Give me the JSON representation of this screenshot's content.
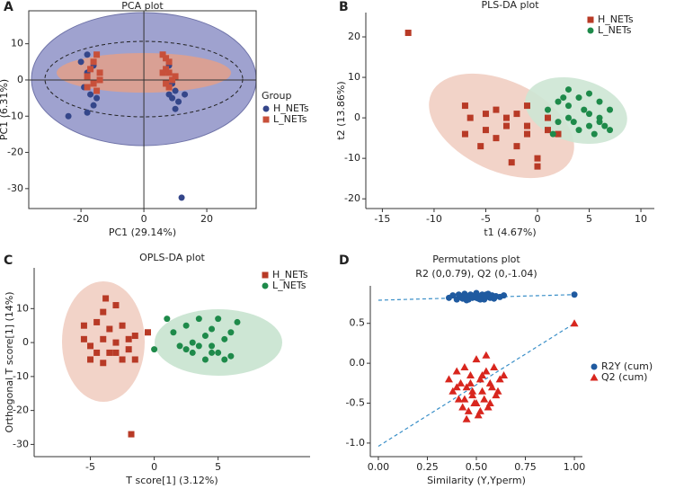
{
  "chart_data": [
    {
      "type": "scatter",
      "panel": "A",
      "title": "PCA plot",
      "x_label": "PC1 (29.14%)",
      "y_label": "PC1 (6.31%)",
      "xlim": [
        -36.6,
        35.7
      ],
      "ylim": [
        -35.5,
        19.1
      ],
      "xticks": [
        -20,
        0,
        20
      ],
      "yticks": [
        10,
        0,
        -10,
        -20,
        -30
      ],
      "frame": true,
      "zero_lines": true,
      "legend": "right",
      "legend_title": "Group",
      "series": [
        {
          "name": "H_NETs",
          "color": "#34468a",
          "marker": "circle",
          "x": [
            -20,
            -18,
            -16,
            -19,
            -17,
            -16,
            -15,
            -18,
            -24,
            8,
            9,
            10,
            9,
            11,
            10,
            13,
            12,
            -18,
            8
          ],
          "values": [
            5,
            7,
            4,
            -2,
            -4,
            -7,
            -5,
            -9,
            -10,
            4,
            -1,
            -3,
            -5,
            -6,
            -8,
            -4,
            -32.5,
            2,
            -4
          ]
        },
        {
          "name": "L_NETs",
          "color": "#c8503a",
          "marker": "square",
          "x": [
            -18,
            -17,
            -16,
            -15,
            -14,
            -16,
            -15,
            -18,
            -14,
            6,
            7,
            8,
            7,
            8,
            9,
            8,
            10,
            6,
            7
          ],
          "values": [
            1,
            3,
            5,
            7,
            2,
            -1,
            -3,
            -2,
            0,
            7,
            6,
            5,
            3,
            2,
            0,
            -2,
            1,
            2,
            -1
          ]
        }
      ]
    },
    {
      "type": "scatter",
      "panel": "B",
      "title": "PLS-DA plot",
      "x_label": "t1 (4.67%)",
      "y_label": "t2 (13.86%)",
      "xlim": [
        -16.6,
        11.3
      ],
      "ylim": [
        -22.4,
        26
      ],
      "xticks": [
        -15,
        -10,
        -5,
        0,
        5,
        10
      ],
      "yticks": [
        20,
        10,
        0,
        -10,
        -20
      ],
      "legend": "upper right",
      "series": [
        {
          "name": "H_NETs",
          "color": "#b83a26",
          "marker": "square",
          "x": [
            -12.5,
            -7,
            -6.5,
            -7,
            -5,
            -5,
            -4,
            -4,
            -3,
            -3,
            -2,
            -2,
            -1,
            -1,
            0,
            0,
            1,
            1,
            -5.5,
            -2.5,
            2,
            -1
          ],
          "values": [
            21,
            3,
            0,
            -4,
            1,
            -3,
            -5,
            2,
            0,
            -2,
            1,
            -7,
            3,
            -4,
            -10,
            -12,
            -3,
            0,
            -7,
            -11,
            -4,
            -2
          ]
        },
        {
          "name": "L_NETs",
          "color": "#1e8a4a",
          "marker": "circle",
          "x": [
            1,
            2,
            2,
            3,
            3,
            4,
            4,
            4.5,
            5,
            5,
            5,
            6,
            6,
            6,
            7,
            7,
            1.5,
            3.5,
            2.5,
            5.5,
            6.5,
            3
          ],
          "values": [
            2,
            4,
            -1,
            3,
            0,
            5,
            -3,
            2,
            6,
            1,
            -2,
            4,
            0,
            -1,
            2,
            -3,
            -4,
            -1,
            5,
            -4,
            -2,
            7
          ]
        }
      ]
    },
    {
      "type": "scatter",
      "panel": "C",
      "title": "OPLS-DA plot",
      "x_label": "T score[1] (3.12%)",
      "y_label": "Orthogonal T score[1] (14%)",
      "xlim": [
        -9.4,
        12.2
      ],
      "ylim": [
        -33.6,
        22
      ],
      "xticks": [
        -5,
        0,
        5
      ],
      "yticks": [
        10,
        0,
        -10,
        -20,
        -30
      ],
      "legend": "upper right",
      "series": [
        {
          "name": "H_NETs",
          "color": "#b83a26",
          "marker": "square",
          "x": [
            -3.8,
            -4,
            -3,
            -5.5,
            -4.5,
            -3.5,
            -2.5,
            -5.5,
            -4,
            -3,
            -2,
            -1.5,
            -5,
            -4.5,
            -3.5,
            -2,
            -5,
            -4,
            -2.5,
            -1.5,
            -0.5,
            -1.8,
            -3
          ],
          "values": [
            13,
            9,
            11,
            5,
            6,
            4,
            5,
            1,
            1,
            0,
            1,
            2,
            -1,
            -3,
            -3,
            -2,
            -5,
            -6,
            -5,
            -5,
            3,
            -27,
            -3
          ]
        },
        {
          "name": "L_NETs",
          "color": "#1e8a4a",
          "marker": "circle",
          "x": [
            0,
            1.5,
            2,
            2.5,
            3,
            3,
            3.5,
            4,
            4,
            4.5,
            4.5,
            5,
            5,
            5.5,
            5.5,
            6,
            6.5,
            6,
            2.5,
            1,
            3.5,
            4.5
          ],
          "values": [
            -2,
            3,
            -1,
            5,
            0,
            -3,
            7,
            2,
            -5,
            4,
            -1,
            7,
            -3,
            1,
            -5,
            3,
            6,
            -4,
            -2,
            7,
            -1,
            -3
          ]
        }
      ]
    },
    {
      "type": "scatter",
      "panel": "D",
      "title": "Permutations plot",
      "subtitle": "R2 (0,0.79), Q2 (0,-1.04)",
      "x_label": "Similarity (Y,Yperm)",
      "xlim": [
        -0.041,
        1.041
      ],
      "ylim": [
        -1.17,
        0.97
      ],
      "xticks": [
        {
          "value": 0,
          "label": "0.00"
        },
        {
          "value": 0.25,
          "label": "0.25"
        },
        {
          "value": 0.5,
          "label": "0.50"
        },
        {
          "value": 0.75,
          "label": "0.75"
        },
        {
          "value": 1,
          "label": "1.00"
        }
      ],
      "yticks": [
        0.5,
        {
          "value": 0,
          "label": "0.0"
        },
        -0.5,
        {
          "value": -1,
          "label": "-1.0"
        }
      ],
      "legend": "right",
      "series": [
        {
          "name": "R2Y (cum)",
          "color": "#1f5aa0",
          "marker": "circle",
          "intercept": 0.79,
          "x": [
            0.36,
            0.38,
            0.4,
            0.41,
            0.42,
            0.43,
            0.44,
            0.45,
            0.46,
            0.47,
            0.48,
            0.49,
            0.5,
            0.51,
            0.52,
            0.53,
            0.54,
            0.55,
            0.56,
            0.57,
            0.58,
            0.59,
            0.6,
            0.62,
            0.64,
            0.45,
            0.5,
            0.55,
            0.48,
            0.52,
            1.0
          ],
          "values": [
            0.82,
            0.85,
            0.8,
            0.86,
            0.83,
            0.81,
            0.87,
            0.84,
            0.8,
            0.86,
            0.82,
            0.85,
            0.88,
            0.81,
            0.84,
            0.86,
            0.8,
            0.83,
            0.87,
            0.82,
            0.85,
            0.81,
            0.84,
            0.83,
            0.85,
            0.79,
            0.82,
            0.86,
            0.84,
            0.8,
            0.86
          ]
        },
        {
          "name": "Q2 (cum)",
          "color": "#d8261e",
          "marker": "triangle",
          "intercept": -1.04,
          "x": [
            0.36,
            0.38,
            0.4,
            0.41,
            0.42,
            0.43,
            0.44,
            0.45,
            0.46,
            0.47,
            0.48,
            0.49,
            0.5,
            0.51,
            0.52,
            0.53,
            0.54,
            0.55,
            0.56,
            0.57,
            0.58,
            0.59,
            0.6,
            0.62,
            0.64,
            0.45,
            0.5,
            0.55,
            0.48,
            0.52,
            0.4,
            0.44,
            0.47,
            0.53,
            0.57,
            0.61,
            1.0
          ],
          "values": [
            -0.2,
            -0.35,
            -0.1,
            -0.45,
            -0.25,
            -0.55,
            -0.05,
            -0.3,
            -0.6,
            -0.15,
            -0.4,
            -0.5,
            0.05,
            -0.65,
            -0.2,
            -0.35,
            -0.45,
            -0.1,
            -0.55,
            -0.25,
            -0.3,
            -0.05,
            -0.4,
            -0.2,
            -0.15,
            -0.7,
            -0.5,
            0.1,
            -0.35,
            -0.6,
            -0.3,
            -0.45,
            -0.25,
            -0.15,
            -0.5,
            -0.35,
            0.5
          ]
        }
      ]
    }
  ]
}
